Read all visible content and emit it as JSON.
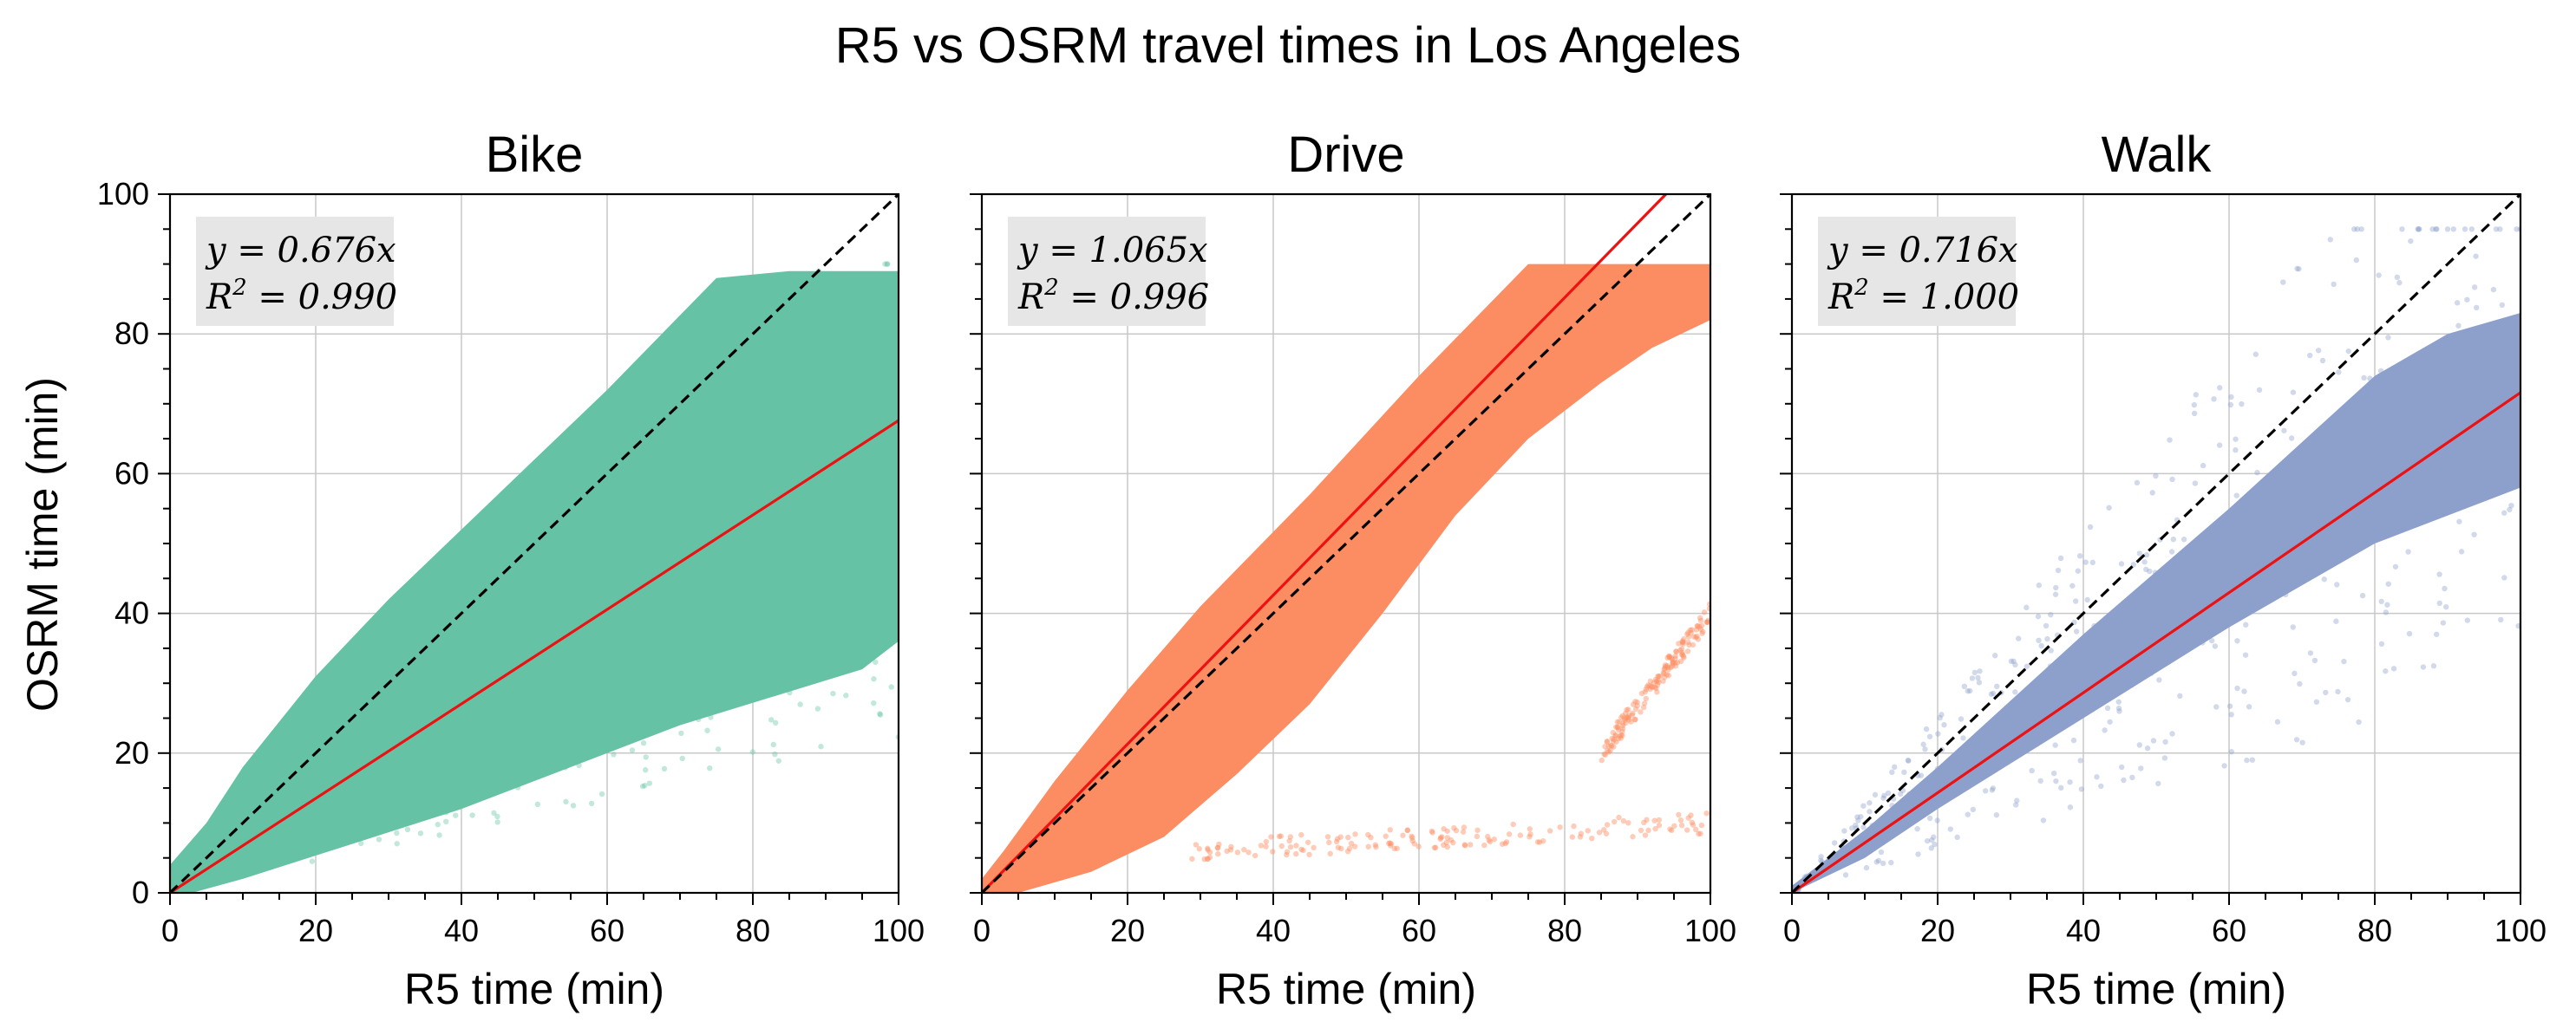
{
  "figure": {
    "suptitle": "R5 vs OSRM travel times in Los Angeles",
    "xlabel": "R5 time (min)",
    "ylabel": "OSRM time (min)"
  },
  "chart_data": [
    {
      "type": "scatter",
      "title": "Bike",
      "xlabel": "R5 time (min)",
      "ylabel": "OSRM time (min)",
      "xlim": [
        0,
        100
      ],
      "ylim": [
        0,
        100
      ],
      "xticks": [
        0,
        20,
        40,
        60,
        80,
        100
      ],
      "yticks": [
        0,
        20,
        40,
        60,
        80,
        100
      ],
      "grid": true,
      "color": "#66c2a5",
      "slope": 0.676,
      "r2": 0.99,
      "annotation": {
        "eq": "y = 0.676x",
        "r2_prefix": "R",
        "r2_sup": "2",
        "r2_suffix": " = 0.990"
      },
      "fit_line_color": "#ee1111",
      "identity_line_color": "#000000",
      "point_cloud": {
        "main_band": [
          [
            0,
            0
          ],
          [
            3,
            0
          ],
          [
            10,
            2
          ],
          [
            40,
            12
          ],
          [
            70,
            24
          ],
          [
            95,
            32
          ],
          [
            100,
            36
          ],
          [
            100,
            89
          ],
          [
            85,
            89
          ],
          [
            75,
            88
          ],
          [
            60,
            72
          ],
          [
            50,
            62
          ],
          [
            40,
            52
          ],
          [
            30,
            42
          ],
          [
            20,
            31
          ],
          [
            10,
            18
          ],
          [
            5,
            10
          ],
          [
            0,
            4
          ]
        ],
        "scatter_range": {
          "x": [
            0,
            100
          ],
          "ratio_min": 0.22,
          "ratio_max": 1.05,
          "y_cap": 90
        }
      }
    },
    {
      "type": "scatter",
      "title": "Drive",
      "xlabel": "R5 time (min)",
      "ylabel": "",
      "xlim": [
        0,
        100
      ],
      "ylim": [
        0,
        100
      ],
      "xticks": [
        0,
        20,
        40,
        60,
        80,
        100
      ],
      "yticks": [
        0,
        20,
        40,
        60,
        80,
        100
      ],
      "grid": true,
      "color": "#fc8d62",
      "slope": 1.065,
      "r2": 0.996,
      "annotation": {
        "eq": "y = 1.065x",
        "r2_prefix": "R",
        "r2_sup": "2",
        "r2_suffix": " = 0.996"
      },
      "fit_line_color": "#ee1111",
      "identity_line_color": "#000000",
      "point_cloud": {
        "main_band": [
          [
            0,
            0
          ],
          [
            5,
            0
          ],
          [
            15,
            3
          ],
          [
            25,
            8
          ],
          [
            35,
            17
          ],
          [
            45,
            27
          ],
          [
            55,
            40
          ],
          [
            65,
            54
          ],
          [
            75,
            65
          ],
          [
            85,
            73
          ],
          [
            92,
            78
          ],
          [
            100,
            82
          ],
          [
            100,
            90
          ],
          [
            75,
            90
          ],
          [
            60,
            74
          ],
          [
            45,
            57
          ],
          [
            30,
            41
          ],
          [
            20,
            29
          ],
          [
            10,
            16
          ],
          [
            3,
            6
          ],
          [
            0,
            2
          ]
        ],
        "side_bands": [
          {
            "x": [
              28,
              100
            ],
            "y": [
              6,
              10
            ]
          },
          {
            "x": [
              85,
              100
            ],
            "y": [
              20,
              40
            ]
          }
        ]
      }
    },
    {
      "type": "scatter",
      "title": "Walk",
      "xlabel": "R5 time (min)",
      "ylabel": "",
      "xlim": [
        0,
        100
      ],
      "ylim": [
        0,
        100
      ],
      "xticks": [
        0,
        20,
        40,
        60,
        80,
        100
      ],
      "yticks": [
        0,
        20,
        40,
        60,
        80,
        100
      ],
      "grid": true,
      "color": "#8da0cb",
      "slope": 0.716,
      "r2": 1.0,
      "annotation": {
        "eq": "y = 0.716x",
        "r2_prefix": "R",
        "r2_sup": "2",
        "r2_suffix": " = 1.000"
      },
      "fit_line_color": "#ee1111",
      "identity_line_color": "#000000",
      "point_cloud": {
        "main_band": [
          [
            0,
            0
          ],
          [
            10,
            5
          ],
          [
            20,
            12
          ],
          [
            40,
            25
          ],
          [
            60,
            38
          ],
          [
            80,
            50
          ],
          [
            100,
            58
          ],
          [
            100,
            83
          ],
          [
            90,
            80
          ],
          [
            80,
            74
          ],
          [
            60,
            55
          ],
          [
            40,
            37
          ],
          [
            20,
            18
          ],
          [
            10,
            9
          ],
          [
            0,
            1
          ]
        ],
        "outlier_range": {
          "x": [
            0,
            100
          ],
          "ratio_min": 0.3,
          "ratio_max": 1.3,
          "y_cap": 95
        }
      }
    }
  ]
}
